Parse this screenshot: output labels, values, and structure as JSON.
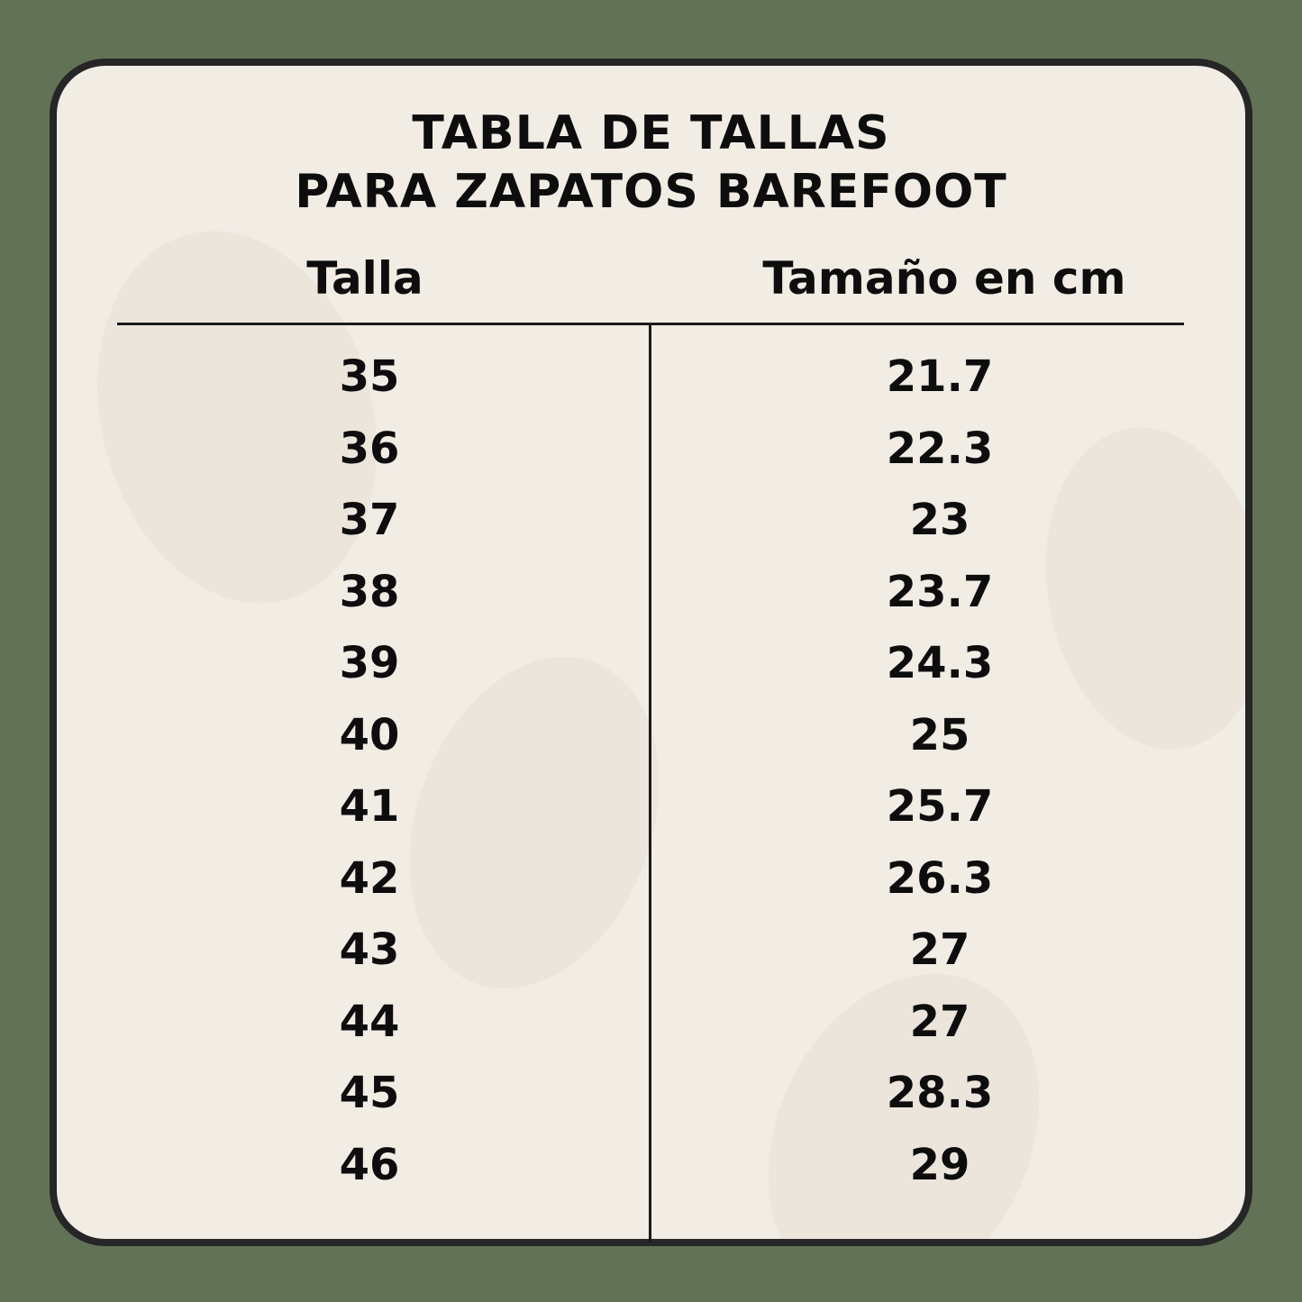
{
  "title": {
    "line1": "TABLA DE TALLAS",
    "line2": "PARA ZAPATOS BAREFOOT"
  },
  "columns": {
    "size": "Talla",
    "length": "Tamaño en cm"
  },
  "rows": [
    {
      "size": "35",
      "cm": "21.7"
    },
    {
      "size": "36",
      "cm": "22.3"
    },
    {
      "size": "37",
      "cm": "23"
    },
    {
      "size": "38",
      "cm": "23.7"
    },
    {
      "size": "39",
      "cm": "24.3"
    },
    {
      "size": "40",
      "cm": "25"
    },
    {
      "size": "41",
      "cm": "25.7"
    },
    {
      "size": "42",
      "cm": "26.3"
    },
    {
      "size": "43",
      "cm": "27"
    },
    {
      "size": "44",
      "cm": "27"
    },
    {
      "size": "45",
      "cm": "28.3"
    },
    {
      "size": "46",
      "cm": "29"
    }
  ],
  "colors": {
    "background": "#627256",
    "card": "#f1ece4",
    "border": "#262626",
    "text": "#0d0d0d"
  }
}
